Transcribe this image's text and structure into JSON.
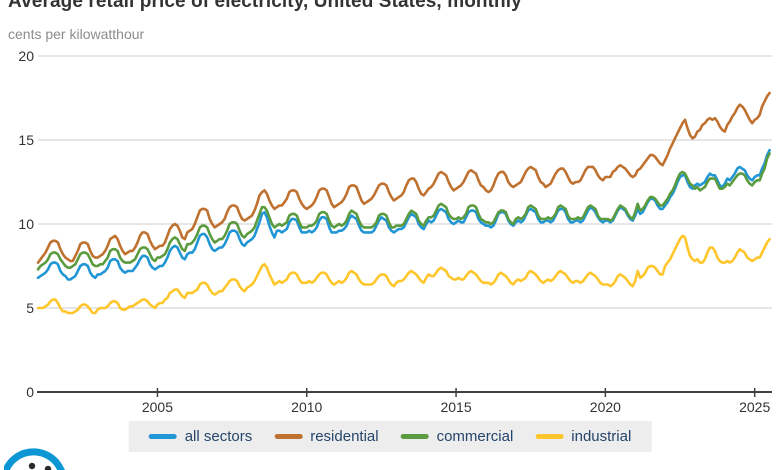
{
  "title": "Average retail price of electricity, United States, monthly",
  "subtitle": "cents per kilowatthour",
  "colors": {
    "axis": "#404040",
    "grid": "#cccccc",
    "title": "#333333",
    "subtitle": "#8c8c8c",
    "tick_label": "#333333",
    "legend_bg": "#ededed",
    "legend_text": "#26456b",
    "logo_blue": "#0c96d4"
  },
  "chart_data": {
    "type": "line",
    "title": "Average retail price of electricity, United States, monthly",
    "ylabel": "cents per kilowatthour",
    "xlabel": "",
    "xlim": [
      2001,
      2025.58
    ],
    "ylim": [
      0,
      20
    ],
    "x_ticks": [
      2005,
      2010,
      2015,
      2020,
      2025
    ],
    "y_ticks": [
      0,
      5,
      10,
      15,
      20
    ],
    "grid": "horizontal",
    "legend_position": "bottom",
    "x_start_year": 2001,
    "x_frequency": "monthly",
    "series": [
      {
        "name": "all sectors",
        "color": "#2196d4",
        "values": [
          6.8,
          6.9,
          7.0,
          7.1,
          7.3,
          7.6,
          7.7,
          7.7,
          7.6,
          7.2,
          7.0,
          6.9,
          6.7,
          6.7,
          6.8,
          6.9,
          7.2,
          7.5,
          7.6,
          7.6,
          7.5,
          7.1,
          6.9,
          6.8,
          7.0,
          7.0,
          7.1,
          7.2,
          7.4,
          7.8,
          7.9,
          7.9,
          7.8,
          7.4,
          7.2,
          7.1,
          7.2,
          7.2,
          7.2,
          7.4,
          7.6,
          7.9,
          8.1,
          8.1,
          8.0,
          7.6,
          7.4,
          7.3,
          7.4,
          7.5,
          7.5,
          7.7,
          8.0,
          8.4,
          8.6,
          8.7,
          8.6,
          8.3,
          8.0,
          7.9,
          8.2,
          8.3,
          8.3,
          8.5,
          8.9,
          9.3,
          9.4,
          9.4,
          9.2,
          8.8,
          8.5,
          8.4,
          8.5,
          8.6,
          8.6,
          8.8,
          9.1,
          9.5,
          9.6,
          9.6,
          9.5,
          9.1,
          8.8,
          8.7,
          8.9,
          9.0,
          9.1,
          9.3,
          9.7,
          10.1,
          10.6,
          10.7,
          10.4,
          9.9,
          9.5,
          9.2,
          9.6,
          9.6,
          9.5,
          9.6,
          9.7,
          10.1,
          10.3,
          10.3,
          10.2,
          9.8,
          9.5,
          9.5,
          9.5,
          9.6,
          9.5,
          9.6,
          9.8,
          10.2,
          10.4,
          10.4,
          10.3,
          9.8,
          9.5,
          9.5,
          9.5,
          9.6,
          9.6,
          9.7,
          9.9,
          10.3,
          10.5,
          10.4,
          10.3,
          9.9,
          9.6,
          9.5,
          9.5,
          9.5,
          9.5,
          9.6,
          9.9,
          10.2,
          10.4,
          10.3,
          10.2,
          9.8,
          9.6,
          9.5,
          9.6,
          9.7,
          9.7,
          9.8,
          10.1,
          10.4,
          10.6,
          10.5,
          10.4,
          10.0,
          9.8,
          9.7,
          10.0,
          10.2,
          10.1,
          10.2,
          10.5,
          10.8,
          10.9,
          10.8,
          10.7,
          10.3,
          10.1,
          10.0,
          10.1,
          10.2,
          10.1,
          10.1,
          10.4,
          10.7,
          10.8,
          10.8,
          10.7,
          10.3,
          10.1,
          10.0,
          9.9,
          9.9,
          9.8,
          9.9,
          10.2,
          10.6,
          10.7,
          10.7,
          10.6,
          10.2,
          10.0,
          9.9,
          10.1,
          10.2,
          10.1,
          10.2,
          10.5,
          10.8,
          10.9,
          10.8,
          10.7,
          10.3,
          10.1,
          10.1,
          10.2,
          10.2,
          10.1,
          10.2,
          10.5,
          10.8,
          10.9,
          10.9,
          10.7,
          10.3,
          10.1,
          10.1,
          10.2,
          10.2,
          10.1,
          10.2,
          10.5,
          10.8,
          11.0,
          10.9,
          10.7,
          10.4,
          10.2,
          10.1,
          10.2,
          10.2,
          10.1,
          10.2,
          10.5,
          10.8,
          11.0,
          10.9,
          10.8,
          10.5,
          10.3,
          10.2,
          10.5,
          10.9,
          10.6,
          10.7,
          11.0,
          11.3,
          11.5,
          11.5,
          11.4,
          11.1,
          10.9,
          10.9,
          11.1,
          11.3,
          11.6,
          11.8,
          12.1,
          12.5,
          12.8,
          12.9,
          12.9,
          12.5,
          12.2,
          12.1,
          12.3,
          12.4,
          12.3,
          12.4,
          12.5,
          12.8,
          13.0,
          12.9,
          12.9,
          12.6,
          12.3,
          12.2,
          12.4,
          12.7,
          12.6,
          12.8,
          13.0,
          13.3,
          13.4,
          13.3,
          13.2,
          12.9,
          12.7,
          12.6,
          12.8,
          12.9,
          12.9,
          13.3,
          13.6,
          14.1,
          14.4
        ]
      },
      {
        "name": "residential",
        "color": "#bf7130",
        "values": [
          7.7,
          7.9,
          8.1,
          8.3,
          8.6,
          8.9,
          9.0,
          9.0,
          8.9,
          8.5,
          8.2,
          8.0,
          7.9,
          7.8,
          7.8,
          8.1,
          8.4,
          8.8,
          8.9,
          8.9,
          8.8,
          8.4,
          8.1,
          8.0,
          8.0,
          8.1,
          8.2,
          8.4,
          8.7,
          9.1,
          9.2,
          9.3,
          9.1,
          8.7,
          8.4,
          8.2,
          8.3,
          8.4,
          8.4,
          8.6,
          8.9,
          9.3,
          9.5,
          9.5,
          9.4,
          9.0,
          8.7,
          8.5,
          8.6,
          8.7,
          8.7,
          8.9,
          9.3,
          9.7,
          9.9,
          10.0,
          9.9,
          9.6,
          9.2,
          9.1,
          9.5,
          9.6,
          9.7,
          10.0,
          10.4,
          10.8,
          10.9,
          10.9,
          10.8,
          10.3,
          10.0,
          9.8,
          9.9,
          10.0,
          10.1,
          10.3,
          10.7,
          11.0,
          11.1,
          11.1,
          11.0,
          10.6,
          10.3,
          10.2,
          10.3,
          10.4,
          10.5,
          10.8,
          11.2,
          11.7,
          11.9,
          12.0,
          11.8,
          11.4,
          11.1,
          10.9,
          11.0,
          11.1,
          11.1,
          11.3,
          11.5,
          11.9,
          12.0,
          12.0,
          11.9,
          11.5,
          11.2,
          11.0,
          10.9,
          11.0,
          11.1,
          11.3,
          11.6,
          12.0,
          12.1,
          12.1,
          12.0,
          11.6,
          11.2,
          11.0,
          11.1,
          11.2,
          11.3,
          11.5,
          11.8,
          12.2,
          12.3,
          12.3,
          12.2,
          11.8,
          11.4,
          11.2,
          11.3,
          11.4,
          11.5,
          11.7,
          12.0,
          12.3,
          12.4,
          12.4,
          12.3,
          11.9,
          11.6,
          11.4,
          11.5,
          11.6,
          11.7,
          11.9,
          12.3,
          12.6,
          12.7,
          12.7,
          12.5,
          12.1,
          11.8,
          11.7,
          11.9,
          12.1,
          12.2,
          12.4,
          12.7,
          13.0,
          13.1,
          13.0,
          12.9,
          12.5,
          12.2,
          12.0,
          12.1,
          12.2,
          12.3,
          12.5,
          12.8,
          13.1,
          13.2,
          13.1,
          13.0,
          12.6,
          12.3,
          12.2,
          12.0,
          11.9,
          12.0,
          12.3,
          12.7,
          13.0,
          13.1,
          13.1,
          12.9,
          12.5,
          12.3,
          12.2,
          12.3,
          12.4,
          12.5,
          12.8,
          13.1,
          13.3,
          13.4,
          13.3,
          13.2,
          12.8,
          12.5,
          12.4,
          12.2,
          12.3,
          12.4,
          12.7,
          13.0,
          13.2,
          13.3,
          13.3,
          13.1,
          12.8,
          12.5,
          12.4,
          12.5,
          12.5,
          12.6,
          12.9,
          13.2,
          13.4,
          13.4,
          13.4,
          13.2,
          12.9,
          12.7,
          12.6,
          12.8,
          12.8,
          12.8,
          13.1,
          13.2,
          13.4,
          13.5,
          13.4,
          13.3,
          13.1,
          12.9,
          12.8,
          12.9,
          13.2,
          13.3,
          13.5,
          13.7,
          13.9,
          14.1,
          14.1,
          14.0,
          13.8,
          13.6,
          13.5,
          13.8,
          14.1,
          14.5,
          14.8,
          15.1,
          15.4,
          15.7,
          16.0,
          16.2,
          15.7,
          15.3,
          15.1,
          15.2,
          15.5,
          15.6,
          15.9,
          16.0,
          16.2,
          16.3,
          16.2,
          16.3,
          16.1,
          15.8,
          15.6,
          15.5,
          15.9,
          16.1,
          16.4,
          16.6,
          16.9,
          17.1,
          17.0,
          16.8,
          16.5,
          16.2,
          16.0,
          16.2,
          16.3,
          16.5,
          17.0,
          17.3,
          17.6,
          17.8
        ]
      },
      {
        "name": "commercial",
        "color": "#5a9b3f",
        "values": [
          7.3,
          7.5,
          7.6,
          7.7,
          7.9,
          8.2,
          8.3,
          8.3,
          8.2,
          7.9,
          7.7,
          7.5,
          7.4,
          7.4,
          7.5,
          7.6,
          7.9,
          8.2,
          8.3,
          8.3,
          8.2,
          7.9,
          7.6,
          7.5,
          7.5,
          7.6,
          7.6,
          7.8,
          8.0,
          8.4,
          8.5,
          8.5,
          8.4,
          8.0,
          7.8,
          7.7,
          7.7,
          7.7,
          7.8,
          7.9,
          8.2,
          8.5,
          8.6,
          8.6,
          8.5,
          8.2,
          7.9,
          7.8,
          8.0,
          8.0,
          8.1,
          8.2,
          8.5,
          8.9,
          9.1,
          9.2,
          9.1,
          8.8,
          8.5,
          8.4,
          8.8,
          8.8,
          8.9,
          9.1,
          9.4,
          9.8,
          9.9,
          9.9,
          9.8,
          9.4,
          9.1,
          8.9,
          9.0,
          9.1,
          9.1,
          9.3,
          9.6,
          10.0,
          10.1,
          10.1,
          10.0,
          9.6,
          9.3,
          9.2,
          9.4,
          9.5,
          9.6,
          9.8,
          10.2,
          10.6,
          11.0,
          11.0,
          10.8,
          10.4,
          10.0,
          9.8,
          9.9,
          10.0,
          9.9,
          10.0,
          10.1,
          10.5,
          10.6,
          10.6,
          10.5,
          10.1,
          9.8,
          9.8,
          9.8,
          9.9,
          9.9,
          10.0,
          10.2,
          10.6,
          10.7,
          10.7,
          10.6,
          10.2,
          9.9,
          9.8,
          9.9,
          10.0,
          9.9,
          10.0,
          10.2,
          10.6,
          10.8,
          10.7,
          10.6,
          10.2,
          9.9,
          9.8,
          9.8,
          9.8,
          9.8,
          9.9,
          10.1,
          10.5,
          10.6,
          10.6,
          10.5,
          10.1,
          9.8,
          9.8,
          9.9,
          9.9,
          9.9,
          10.0,
          10.3,
          10.6,
          10.8,
          10.7,
          10.6,
          10.2,
          10.0,
          9.9,
          10.2,
          10.4,
          10.4,
          10.5,
          10.8,
          11.1,
          11.2,
          11.1,
          11.0,
          10.6,
          10.4,
          10.3,
          10.3,
          10.4,
          10.3,
          10.4,
          10.6,
          11.0,
          11.1,
          11.1,
          11.0,
          10.6,
          10.3,
          10.2,
          10.1,
          10.1,
          10.0,
          10.1,
          10.4,
          10.7,
          10.8,
          10.8,
          10.7,
          10.3,
          10.1,
          10.0,
          10.3,
          10.4,
          10.3,
          10.4,
          10.6,
          11.0,
          11.1,
          11.0,
          10.9,
          10.5,
          10.3,
          10.3,
          10.3,
          10.4,
          10.3,
          10.4,
          10.6,
          11.0,
          11.1,
          11.0,
          10.9,
          10.5,
          10.3,
          10.3,
          10.3,
          10.4,
          10.3,
          10.4,
          10.7,
          11.0,
          11.1,
          11.0,
          10.9,
          10.5,
          10.3,
          10.3,
          10.3,
          10.3,
          10.2,
          10.3,
          10.6,
          10.9,
          11.1,
          11.0,
          10.9,
          10.6,
          10.4,
          10.3,
          10.7,
          11.2,
          10.8,
          10.9,
          11.1,
          11.4,
          11.6,
          11.6,
          11.5,
          11.3,
          11.1,
          11.1,
          11.3,
          11.5,
          11.8,
          12.0,
          12.3,
          12.7,
          13.0,
          13.1,
          13.0,
          12.7,
          12.4,
          12.3,
          12.1,
          12.2,
          12.0,
          12.1,
          12.2,
          12.5,
          12.7,
          12.7,
          12.7,
          12.4,
          12.1,
          12.1,
          12.2,
          12.4,
          12.3,
          12.5,
          12.7,
          12.9,
          13.0,
          13.0,
          12.9,
          12.6,
          12.4,
          12.3,
          12.5,
          12.6,
          12.6,
          13.0,
          13.3,
          13.9,
          14.2
        ]
      },
      {
        "name": "industrial",
        "color": "#ffc62b",
        "values": [
          5.0,
          5.0,
          5.0,
          5.1,
          5.2,
          5.4,
          5.5,
          5.5,
          5.3,
          5.0,
          4.8,
          4.8,
          4.7,
          4.7,
          4.7,
          4.8,
          4.9,
          5.1,
          5.2,
          5.2,
          5.1,
          4.9,
          4.7,
          4.7,
          4.9,
          5.0,
          5.0,
          5.0,
          5.1,
          5.3,
          5.4,
          5.4,
          5.3,
          5.0,
          4.9,
          4.9,
          5.0,
          5.1,
          5.1,
          5.2,
          5.3,
          5.4,
          5.5,
          5.5,
          5.4,
          5.2,
          5.1,
          5.0,
          5.2,
          5.3,
          5.3,
          5.5,
          5.6,
          5.9,
          6.0,
          6.1,
          6.1,
          5.9,
          5.7,
          5.6,
          5.9,
          5.9,
          5.9,
          6.0,
          6.1,
          6.4,
          6.5,
          6.5,
          6.4,
          6.1,
          5.9,
          5.8,
          5.9,
          6.0,
          6.0,
          6.2,
          6.4,
          6.6,
          6.7,
          6.7,
          6.6,
          6.3,
          6.1,
          6.0,
          6.2,
          6.3,
          6.4,
          6.6,
          6.9,
          7.2,
          7.5,
          7.6,
          7.4,
          7.0,
          6.7,
          6.4,
          6.5,
          6.6,
          6.5,
          6.6,
          6.7,
          7.0,
          7.1,
          7.1,
          7.0,
          6.7,
          6.5,
          6.5,
          6.5,
          6.6,
          6.5,
          6.6,
          6.8,
          7.0,
          7.1,
          7.1,
          7.0,
          6.7,
          6.5,
          6.4,
          6.5,
          6.6,
          6.5,
          6.6,
          6.8,
          7.1,
          7.2,
          7.1,
          7.0,
          6.7,
          6.5,
          6.4,
          6.4,
          6.4,
          6.4,
          6.5,
          6.7,
          6.9,
          7.0,
          7.0,
          6.9,
          6.6,
          6.4,
          6.3,
          6.5,
          6.6,
          6.6,
          6.7,
          6.9,
          7.1,
          7.2,
          7.1,
          7.0,
          6.8,
          6.6,
          6.5,
          6.8,
          7.0,
          6.9,
          6.9,
          7.1,
          7.3,
          7.4,
          7.3,
          7.2,
          6.9,
          6.8,
          6.7,
          6.7,
          6.8,
          6.7,
          6.7,
          6.9,
          7.1,
          7.2,
          7.1,
          7.0,
          6.8,
          6.6,
          6.5,
          6.5,
          6.5,
          6.4,
          6.5,
          6.7,
          7.0,
          7.1,
          7.0,
          6.9,
          6.7,
          6.5,
          6.4,
          6.6,
          6.7,
          6.6,
          6.7,
          6.8,
          7.1,
          7.2,
          7.1,
          7.0,
          6.8,
          6.6,
          6.5,
          6.6,
          6.7,
          6.6,
          6.7,
          6.9,
          7.1,
          7.2,
          7.1,
          7.0,
          6.8,
          6.6,
          6.5,
          6.6,
          6.6,
          6.5,
          6.6,
          6.8,
          7.0,
          7.1,
          7.0,
          6.9,
          6.7,
          6.5,
          6.4,
          6.4,
          6.4,
          6.3,
          6.4,
          6.6,
          6.9,
          7.0,
          6.9,
          6.8,
          6.6,
          6.4,
          6.3,
          6.6,
          7.2,
          6.8,
          6.9,
          7.1,
          7.4,
          7.5,
          7.5,
          7.4,
          7.2,
          7.0,
          7.0,
          7.5,
          7.7,
          7.9,
          8.2,
          8.5,
          8.8,
          9.1,
          9.3,
          9.2,
          8.6,
          8.1,
          7.9,
          7.8,
          7.9,
          7.7,
          7.7,
          7.9,
          8.3,
          8.6,
          8.6,
          8.4,
          8.0,
          7.8,
          7.7,
          7.7,
          7.8,
          7.7,
          7.8,
          8.0,
          8.3,
          8.5,
          8.4,
          8.3,
          8.0,
          7.9,
          7.8,
          7.9,
          8.0,
          8.0,
          8.3,
          8.6,
          8.9,
          9.1
        ]
      }
    ]
  }
}
